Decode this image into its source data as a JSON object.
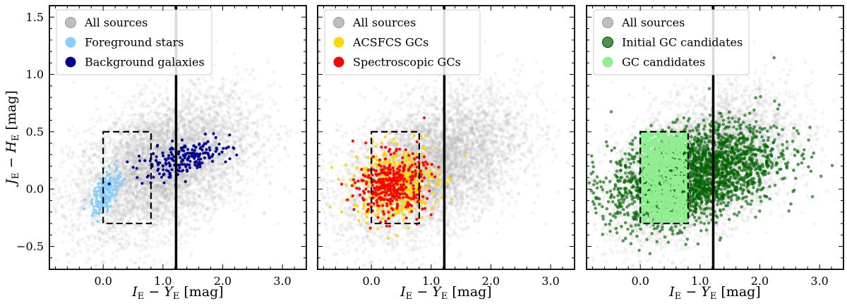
{
  "chart_data": [
    {
      "type": "scatter",
      "panel": "left",
      "xlabel": "I_E − Y_E [mag]",
      "ylabel": "J_E − H_E [mag]",
      "xlim": [
        -0.9,
        3.4
      ],
      "ylim": [
        -0.7,
        1.6
      ],
      "x_ticks": [
        "0.0",
        "1.0",
        "2.0",
        "3.0"
      ],
      "y_ticks": [
        "−0.5",
        "0.0",
        "0.5",
        "1.0",
        "1.5"
      ],
      "vertical_line_x": 1.22,
      "selection_box": {
        "x": [
          0.0,
          0.8
        ],
        "y": [
          -0.3,
          0.5
        ]
      },
      "series": [
        {
          "name": "All sources",
          "color": "#a8a8a8",
          "distribution": {
            "x_mean": 1.0,
            "x_sd": 0.75,
            "y_slope": 0.18,
            "y_intercept": 0.02,
            "y_sd": 0.28,
            "count": 5000
          }
        },
        {
          "name": "Foreground stars",
          "color": "#87cefa",
          "distribution": {
            "x_mean": 0.05,
            "x_sd": 0.12,
            "y_slope": 0.45,
            "y_intercept": -0.05,
            "y_sd": 0.08,
            "count": 180
          }
        },
        {
          "name": "Background galaxies",
          "color": "#00008b",
          "distribution": {
            "x_mean": 1.35,
            "x_sd": 0.4,
            "y_slope": 0.12,
            "y_intercept": 0.1,
            "y_sd": 0.07,
            "count": 200
          }
        }
      ],
      "legend": [
        "All sources",
        "Foreground stars",
        "Background galaxies"
      ],
      "legend_location": "upper-left"
    },
    {
      "type": "scatter",
      "panel": "middle",
      "xlabel": "I_E − Y_E [mag]",
      "xlim": [
        -0.9,
        3.4
      ],
      "ylim": [
        -0.7,
        1.6
      ],
      "x_ticks": [
        "0.0",
        "1.0",
        "2.0",
        "3.0"
      ],
      "vertical_line_x": 1.22,
      "selection_box": {
        "x": [
          0.0,
          0.8
        ],
        "y": [
          -0.3,
          0.5
        ]
      },
      "series": [
        {
          "name": "All sources",
          "color": "#a8a8a8",
          "distribution": {
            "x_mean": 1.0,
            "x_sd": 0.75,
            "y_slope": 0.18,
            "y_intercept": 0.02,
            "y_sd": 0.28,
            "count": 5000
          }
        },
        {
          "name": "ACSFCS GCs",
          "color": "#ffd700",
          "distribution": {
            "x_mean": 0.4,
            "x_sd": 0.35,
            "y_slope": 0.05,
            "y_intercept": 0.03,
            "y_sd": 0.16,
            "count": 450
          }
        },
        {
          "name": "Spectroscopic GCs",
          "color": "#ff0000",
          "distribution": {
            "x_mean": 0.35,
            "x_sd": 0.28,
            "y_slope": 0.05,
            "y_intercept": 0.02,
            "y_sd": 0.13,
            "count": 380
          }
        }
      ],
      "legend": [
        "All sources",
        "ACSFCS GCs",
        "Spectroscopic GCs"
      ],
      "legend_location": "upper-left"
    },
    {
      "type": "scatter",
      "panel": "right",
      "xlabel": "I_E − Y_E [mag]",
      "xlim": [
        -0.9,
        3.4
      ],
      "ylim": [
        -0.7,
        1.6
      ],
      "x_ticks": [
        "0.0",
        "1.0",
        "2.0",
        "3.0"
      ],
      "vertical_line_x": 1.22,
      "selection_box": {
        "x": [
          0.0,
          0.8
        ],
        "y": [
          -0.3,
          0.5
        ]
      },
      "series": [
        {
          "name": "All sources",
          "color": "#a8a8a8",
          "distribution": {
            "x_mean": 1.0,
            "x_sd": 0.75,
            "y_slope": 0.18,
            "y_intercept": 0.02,
            "y_sd": 0.28,
            "count": 5000
          }
        },
        {
          "name": "Initial GC candidates",
          "color": "#006400",
          "distribution": {
            "x_mean": 0.9,
            "x_sd": 0.7,
            "y_slope": 0.12,
            "y_intercept": 0.02,
            "y_sd": 0.2,
            "count": 2200
          }
        },
        {
          "name": "GC candidates",
          "color": "#90ee90",
          "distribution": {
            "x_range": [
              0.0,
              0.8
            ],
            "y_range": [
              -0.3,
              0.5
            ],
            "count": 1400
          }
        }
      ],
      "legend": [
        "All sources",
        "Initial GC candidates",
        "GC candidates"
      ],
      "legend_location": "upper-left"
    }
  ]
}
